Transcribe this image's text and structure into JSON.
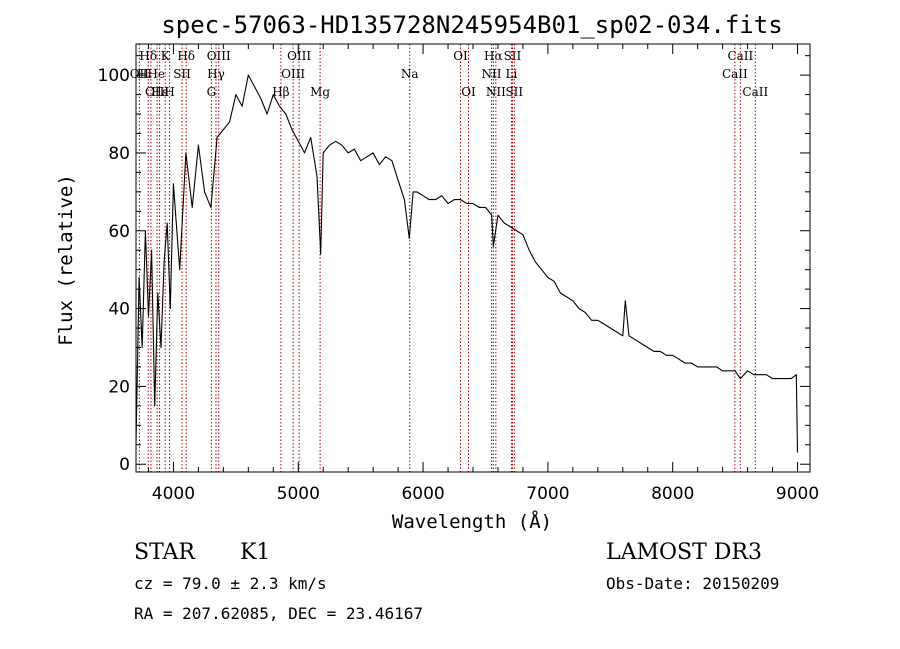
{
  "chart_data": {
    "type": "line",
    "title": "spec-57063-HD135728N245954B01_sp02-034.fits",
    "xlabel": "Wavelength (Å)",
    "ylabel": "Flux (relative)",
    "xlim": [
      3700,
      9100
    ],
    "ylim": [
      -2,
      108
    ],
    "xticks": [
      4000,
      5000,
      6000,
      7000,
      8000,
      9000
    ],
    "yticks": [
      0,
      20,
      40,
      60,
      80,
      100
    ],
    "line_color": "#000000",
    "marker_color": "#b00000",
    "series": [
      {
        "name": "spectrum",
        "x": [
          3700,
          3725,
          3750,
          3775,
          3800,
          3825,
          3850,
          3875,
          3900,
          3925,
          3950,
          3975,
          4000,
          4050,
          4100,
          4150,
          4200,
          4250,
          4300,
          4350,
          4400,
          4450,
          4500,
          4550,
          4600,
          4650,
          4700,
          4750,
          4800,
          4850,
          4900,
          4950,
          5000,
          5050,
          5100,
          5150,
          5180,
          5200,
          5250,
          5300,
          5350,
          5400,
          5450,
          5500,
          5550,
          5600,
          5650,
          5700,
          5750,
          5800,
          5850,
          5890,
          5920,
          5950,
          6000,
          6050,
          6100,
          6150,
          6200,
          6250,
          6300,
          6350,
          6400,
          6450,
          6500,
          6550,
          6563,
          6600,
          6650,
          6700,
          6750,
          6800,
          6850,
          6900,
          6950,
          7000,
          7050,
          7100,
          7150,
          7200,
          7250,
          7300,
          7350,
          7400,
          7450,
          7500,
          7550,
          7600,
          7620,
          7650,
          7700,
          7750,
          7800,
          7850,
          7900,
          7950,
          8000,
          8050,
          8100,
          8150,
          8200,
          8250,
          8300,
          8350,
          8400,
          8450,
          8500,
          8542,
          8600,
          8650,
          8700,
          8750,
          8800,
          8850,
          8900,
          8950,
          8990,
          9000
        ],
        "values": [
          5,
          48,
          30,
          60,
          38,
          55,
          15,
          44,
          30,
          52,
          62,
          40,
          72,
          50,
          80,
          66,
          82,
          70,
          66,
          84,
          86,
          88,
          95,
          92,
          100,
          97,
          94,
          90,
          95,
          92,
          90,
          86,
          83,
          80,
          84,
          74,
          54,
          80,
          82,
          83,
          82,
          80,
          81,
          78,
          79,
          80,
          77,
          79,
          78,
          73,
          68,
          58,
          70,
          70,
          69,
          68,
          68,
          69,
          67,
          68,
          68,
          67,
          67,
          66,
          66,
          64,
          56,
          64,
          62,
          61,
          60,
          59,
          55,
          52,
          50,
          48,
          47,
          44,
          43,
          42,
          40,
          39,
          37,
          37,
          36,
          35,
          34,
          33,
          42,
          33,
          32,
          31,
          30,
          29,
          29,
          28,
          28,
          27,
          26,
          26,
          25,
          25,
          25,
          25,
          24,
          24,
          24,
          22,
          24,
          23,
          23,
          23,
          22,
          22,
          22,
          22,
          23,
          3
        ]
      }
    ],
    "line_markers": [
      {
        "label": "Hδ",
        "wavelength": 3798,
        "row": 1
      },
      {
        "label": "OII",
        "wavelength": 3727,
        "row": 2
      },
      {
        "label": "HHe",
        "wavelength": 3820,
        "row": 2
      },
      {
        "label": "OIII",
        "wavelength": 3869,
        "row": 3
      },
      {
        "label": "Hε",
        "wavelength": 3889,
        "row": 3
      },
      {
        "label": "K",
        "wavelength": 3934,
        "row": 1
      },
      {
        "label": "H",
        "wavelength": 3969,
        "row": 3
      },
      {
        "label": "SII",
        "wavelength": 4069,
        "row": 2
      },
      {
        "label": "Hδ",
        "wavelength": 4102,
        "row": 1
      },
      {
        "label": "OIII",
        "wavelength": 4363,
        "row": 1
      },
      {
        "label": "Hγ",
        "wavelength": 4341,
        "row": 2
      },
      {
        "label": "G",
        "wavelength": 4304,
        "row": 3
      },
      {
        "label": "Hβ",
        "wavelength": 4861,
        "row": 3
      },
      {
        "label": "OIII",
        "wavelength": 4959,
        "row": 2
      },
      {
        "label": "OIII",
        "wavelength": 5007,
        "row": 1
      },
      {
        "label": "Mg",
        "wavelength": 5175,
        "row": 3
      },
      {
        "label": "Na",
        "wavelength": 5893,
        "row": 2
      },
      {
        "label": "OI",
        "wavelength": 6300,
        "row": 1
      },
      {
        "label": "OI",
        "wavelength": 6364,
        "row": 3
      },
      {
        "label": "Hα",
        "wavelength": 6563,
        "row": 1
      },
      {
        "label": "NII",
        "wavelength": 6548,
        "row": 2
      },
      {
        "label": "NII",
        "wavelength": 6583,
        "row": 3
      },
      {
        "label": "SII",
        "wavelength": 6716,
        "row": 1
      },
      {
        "label": "Li",
        "wavelength": 6708,
        "row": 2
      },
      {
        "label": "SII",
        "wavelength": 6731,
        "row": 3
      },
      {
        "label": "CaII",
        "wavelength": 8542,
        "row": 1
      },
      {
        "label": "CaII",
        "wavelength": 8498,
        "row": 2
      },
      {
        "label": "CaII",
        "wavelength": 8662,
        "row": 3
      }
    ]
  },
  "info": {
    "class_label": "STAR",
    "subclass": "K1",
    "survey": "LAMOST DR3",
    "cz": "cz = 79.0 ± 2.3 km/s",
    "obs_date": "Obs-Date: 20150209",
    "coords": "RA = 207.62085, DEC =  23.46167"
  }
}
